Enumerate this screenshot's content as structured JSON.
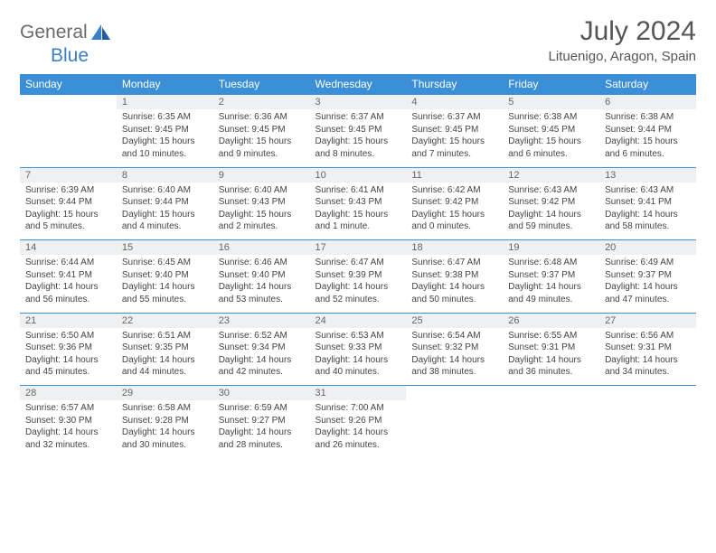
{
  "logo": {
    "text1": "General",
    "text2": "Blue"
  },
  "title": "July 2024",
  "location": "Lituenigo, Aragon, Spain",
  "weekdays": [
    "Sunday",
    "Monday",
    "Tuesday",
    "Wednesday",
    "Thursday",
    "Friday",
    "Saturday"
  ],
  "colors": {
    "header_bg": "#3b8fd6",
    "daynum_bg": "#eef0f2",
    "rule": "#3b8fd6",
    "text": "#444",
    "title": "#555",
    "logo_gray": "#6b6b6b",
    "logo_blue": "#3b7fc4"
  },
  "weeks": [
    {
      "nums": [
        "",
        "1",
        "2",
        "3",
        "4",
        "5",
        "6"
      ],
      "cells": [
        {
          "sunrise": "",
          "sunset": "",
          "daylight": ""
        },
        {
          "sunrise": "Sunrise: 6:35 AM",
          "sunset": "Sunset: 9:45 PM",
          "daylight": "Daylight: 15 hours and 10 minutes."
        },
        {
          "sunrise": "Sunrise: 6:36 AM",
          "sunset": "Sunset: 9:45 PM",
          "daylight": "Daylight: 15 hours and 9 minutes."
        },
        {
          "sunrise": "Sunrise: 6:37 AM",
          "sunset": "Sunset: 9:45 PM",
          "daylight": "Daylight: 15 hours and 8 minutes."
        },
        {
          "sunrise": "Sunrise: 6:37 AM",
          "sunset": "Sunset: 9:45 PM",
          "daylight": "Daylight: 15 hours and 7 minutes."
        },
        {
          "sunrise": "Sunrise: 6:38 AM",
          "sunset": "Sunset: 9:45 PM",
          "daylight": "Daylight: 15 hours and 6 minutes."
        },
        {
          "sunrise": "Sunrise: 6:38 AM",
          "sunset": "Sunset: 9:44 PM",
          "daylight": "Daylight: 15 hours and 6 minutes."
        }
      ]
    },
    {
      "nums": [
        "7",
        "8",
        "9",
        "10",
        "11",
        "12",
        "13"
      ],
      "cells": [
        {
          "sunrise": "Sunrise: 6:39 AM",
          "sunset": "Sunset: 9:44 PM",
          "daylight": "Daylight: 15 hours and 5 minutes."
        },
        {
          "sunrise": "Sunrise: 6:40 AM",
          "sunset": "Sunset: 9:44 PM",
          "daylight": "Daylight: 15 hours and 4 minutes."
        },
        {
          "sunrise": "Sunrise: 6:40 AM",
          "sunset": "Sunset: 9:43 PM",
          "daylight": "Daylight: 15 hours and 2 minutes."
        },
        {
          "sunrise": "Sunrise: 6:41 AM",
          "sunset": "Sunset: 9:43 PM",
          "daylight": "Daylight: 15 hours and 1 minute."
        },
        {
          "sunrise": "Sunrise: 6:42 AM",
          "sunset": "Sunset: 9:42 PM",
          "daylight": "Daylight: 15 hours and 0 minutes."
        },
        {
          "sunrise": "Sunrise: 6:43 AM",
          "sunset": "Sunset: 9:42 PM",
          "daylight": "Daylight: 14 hours and 59 minutes."
        },
        {
          "sunrise": "Sunrise: 6:43 AM",
          "sunset": "Sunset: 9:41 PM",
          "daylight": "Daylight: 14 hours and 58 minutes."
        }
      ]
    },
    {
      "nums": [
        "14",
        "15",
        "16",
        "17",
        "18",
        "19",
        "20"
      ],
      "cells": [
        {
          "sunrise": "Sunrise: 6:44 AM",
          "sunset": "Sunset: 9:41 PM",
          "daylight": "Daylight: 14 hours and 56 minutes."
        },
        {
          "sunrise": "Sunrise: 6:45 AM",
          "sunset": "Sunset: 9:40 PM",
          "daylight": "Daylight: 14 hours and 55 minutes."
        },
        {
          "sunrise": "Sunrise: 6:46 AM",
          "sunset": "Sunset: 9:40 PM",
          "daylight": "Daylight: 14 hours and 53 minutes."
        },
        {
          "sunrise": "Sunrise: 6:47 AM",
          "sunset": "Sunset: 9:39 PM",
          "daylight": "Daylight: 14 hours and 52 minutes."
        },
        {
          "sunrise": "Sunrise: 6:47 AM",
          "sunset": "Sunset: 9:38 PM",
          "daylight": "Daylight: 14 hours and 50 minutes."
        },
        {
          "sunrise": "Sunrise: 6:48 AM",
          "sunset": "Sunset: 9:37 PM",
          "daylight": "Daylight: 14 hours and 49 minutes."
        },
        {
          "sunrise": "Sunrise: 6:49 AM",
          "sunset": "Sunset: 9:37 PM",
          "daylight": "Daylight: 14 hours and 47 minutes."
        }
      ]
    },
    {
      "nums": [
        "21",
        "22",
        "23",
        "24",
        "25",
        "26",
        "27"
      ],
      "cells": [
        {
          "sunrise": "Sunrise: 6:50 AM",
          "sunset": "Sunset: 9:36 PM",
          "daylight": "Daylight: 14 hours and 45 minutes."
        },
        {
          "sunrise": "Sunrise: 6:51 AM",
          "sunset": "Sunset: 9:35 PM",
          "daylight": "Daylight: 14 hours and 44 minutes."
        },
        {
          "sunrise": "Sunrise: 6:52 AM",
          "sunset": "Sunset: 9:34 PM",
          "daylight": "Daylight: 14 hours and 42 minutes."
        },
        {
          "sunrise": "Sunrise: 6:53 AM",
          "sunset": "Sunset: 9:33 PM",
          "daylight": "Daylight: 14 hours and 40 minutes."
        },
        {
          "sunrise": "Sunrise: 6:54 AM",
          "sunset": "Sunset: 9:32 PM",
          "daylight": "Daylight: 14 hours and 38 minutes."
        },
        {
          "sunrise": "Sunrise: 6:55 AM",
          "sunset": "Sunset: 9:31 PM",
          "daylight": "Daylight: 14 hours and 36 minutes."
        },
        {
          "sunrise": "Sunrise: 6:56 AM",
          "sunset": "Sunset: 9:31 PM",
          "daylight": "Daylight: 14 hours and 34 minutes."
        }
      ]
    },
    {
      "nums": [
        "28",
        "29",
        "30",
        "31",
        "",
        "",
        ""
      ],
      "cells": [
        {
          "sunrise": "Sunrise: 6:57 AM",
          "sunset": "Sunset: 9:30 PM",
          "daylight": "Daylight: 14 hours and 32 minutes."
        },
        {
          "sunrise": "Sunrise: 6:58 AM",
          "sunset": "Sunset: 9:28 PM",
          "daylight": "Daylight: 14 hours and 30 minutes."
        },
        {
          "sunrise": "Sunrise: 6:59 AM",
          "sunset": "Sunset: 9:27 PM",
          "daylight": "Daylight: 14 hours and 28 minutes."
        },
        {
          "sunrise": "Sunrise: 7:00 AM",
          "sunset": "Sunset: 9:26 PM",
          "daylight": "Daylight: 14 hours and 26 minutes."
        },
        {
          "sunrise": "",
          "sunset": "",
          "daylight": ""
        },
        {
          "sunrise": "",
          "sunset": "",
          "daylight": ""
        },
        {
          "sunrise": "",
          "sunset": "",
          "daylight": ""
        }
      ]
    }
  ]
}
